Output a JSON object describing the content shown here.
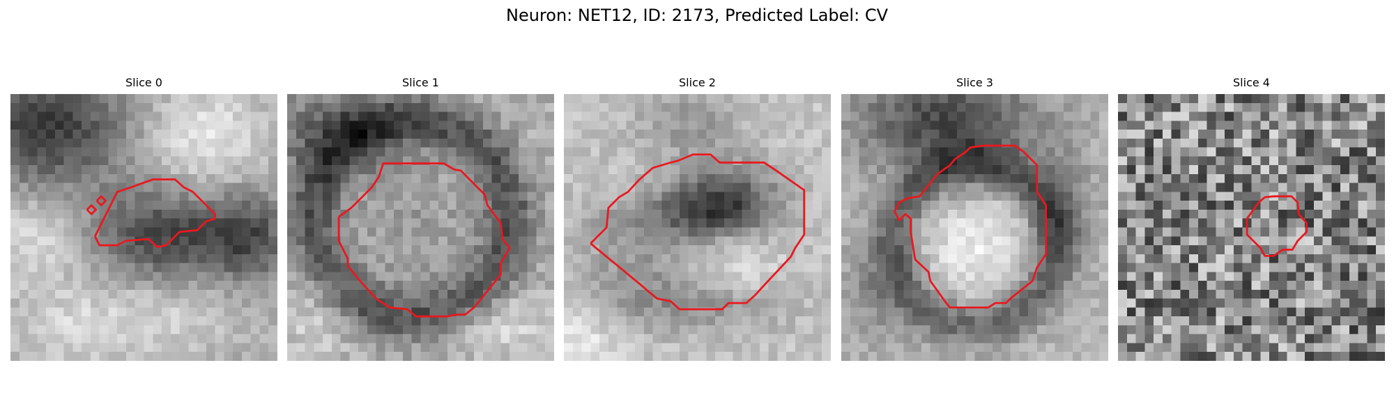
{
  "figure": {
    "title": "Neuron: NET12, ID: 2173, Predicted Label: CV"
  },
  "panels": [
    {
      "title": "Slice 0"
    },
    {
      "title": "Slice 1"
    },
    {
      "title": "Slice 2"
    },
    {
      "title": "Slice 3"
    },
    {
      "title": "Slice 4"
    }
  ],
  "colors": {
    "contour": "#e8191f",
    "background": "#ffffff"
  },
  "colormap": "gray"
}
